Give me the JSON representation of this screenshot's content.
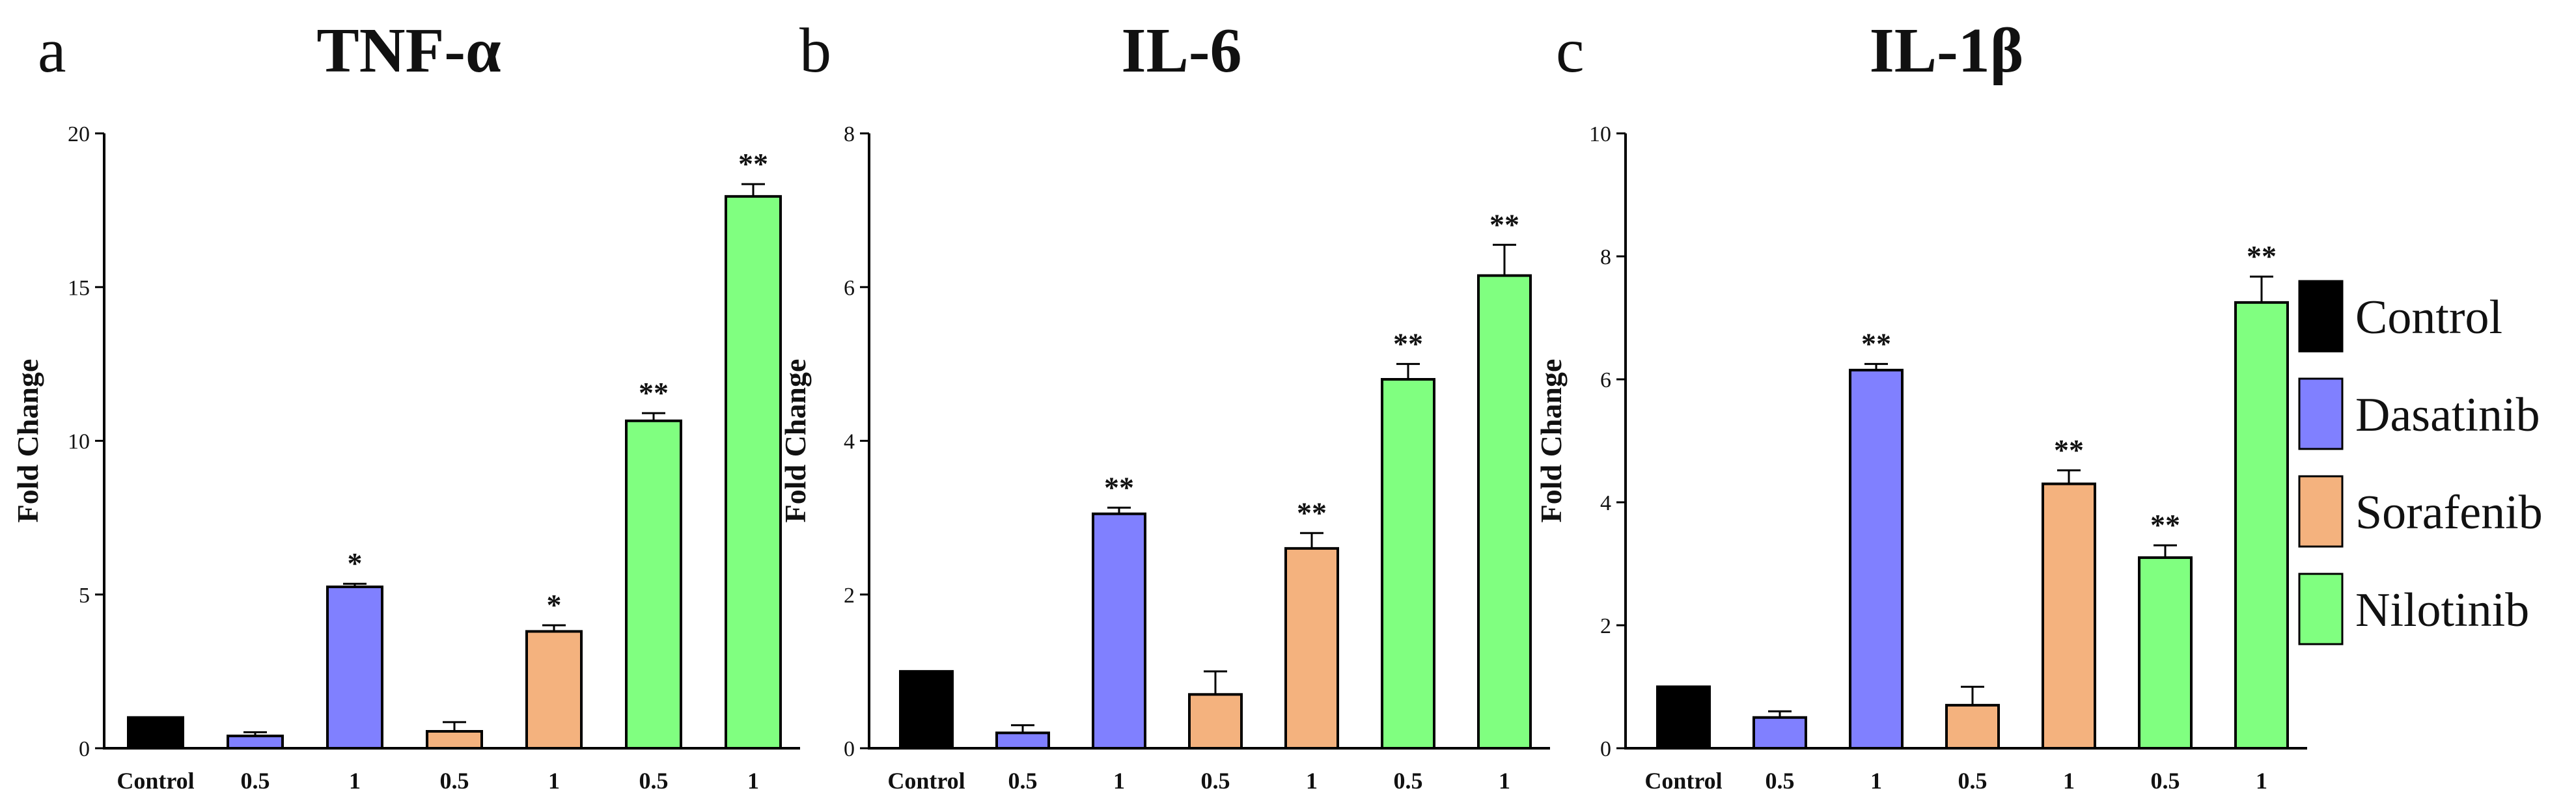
{
  "chart_data": [
    {
      "type": "bar",
      "panel": "a",
      "title": "TNF-α",
      "xlabel": "",
      "ylabel": "Fold Change",
      "ylim": [
        0,
        20
      ],
      "yticks": [
        0,
        5,
        10,
        15,
        20
      ],
      "categories": [
        "Control",
        "0.5",
        "1",
        "0.5",
        "1",
        "0.5",
        "1"
      ],
      "groups": [
        "Control",
        "Dasatinib",
        "Dasatinib",
        "Sorafenib",
        "Sorafenib",
        "Nilotinib",
        "Nilotinib"
      ],
      "values": [
        1.0,
        0.4,
        5.25,
        0.55,
        3.8,
        10.65,
        17.95
      ],
      "errors": [
        0,
        0.12,
        0.1,
        0.3,
        0.2,
        0.25,
        0.4
      ],
      "significance": [
        "",
        "",
        "*",
        "",
        "*",
        "**",
        "**"
      ]
    },
    {
      "type": "bar",
      "panel": "b",
      "title": "IL-6",
      "xlabel": "",
      "ylabel": "Fold Change",
      "ylim": [
        0,
        8
      ],
      "yticks": [
        0,
        2,
        4,
        6,
        8
      ],
      "categories": [
        "Control",
        "0.5",
        "1",
        "0.5",
        "1",
        "0.5",
        "1"
      ],
      "groups": [
        "Control",
        "Dasatinib",
        "Dasatinib",
        "Sorafenib",
        "Sorafenib",
        "Nilotinib",
        "Nilotinib"
      ],
      "values": [
        1.0,
        0.2,
        3.05,
        0.7,
        2.6,
        4.8,
        6.15
      ],
      "errors": [
        0,
        0.1,
        0.08,
        0.3,
        0.2,
        0.2,
        0.4
      ],
      "significance": [
        "",
        "",
        "**",
        "",
        "**",
        "**",
        "**"
      ]
    },
    {
      "type": "bar",
      "panel": "c",
      "title": "IL-1β",
      "xlabel": "",
      "ylabel": "Fold Change",
      "ylim": [
        0,
        10
      ],
      "yticks": [
        0,
        2,
        4,
        6,
        8,
        10
      ],
      "categories": [
        "Control",
        "0.5",
        "1",
        "0.5",
        "1",
        "0.5",
        "1"
      ],
      "groups": [
        "Control",
        "Dasatinib",
        "Dasatinib",
        "Sorafenib",
        "Sorafenib",
        "Nilotinib",
        "Nilotinib"
      ],
      "values": [
        1.0,
        0.5,
        6.15,
        0.7,
        4.3,
        3.1,
        7.25
      ],
      "errors": [
        0,
        0.1,
        0.1,
        0.3,
        0.22,
        0.2,
        0.42
      ],
      "significance": [
        "",
        "",
        "**",
        "",
        "**",
        "**",
        "**"
      ]
    }
  ],
  "legend": {
    "position": "right",
    "items": [
      {
        "label": "Control",
        "color": "#000000"
      },
      {
        "label": "Dasatinib",
        "color": "#8080ff"
      },
      {
        "label": "Sorafenib",
        "color": "#f4b27e"
      },
      {
        "label": "Nilotinib",
        "color": "#80ff80"
      }
    ]
  }
}
